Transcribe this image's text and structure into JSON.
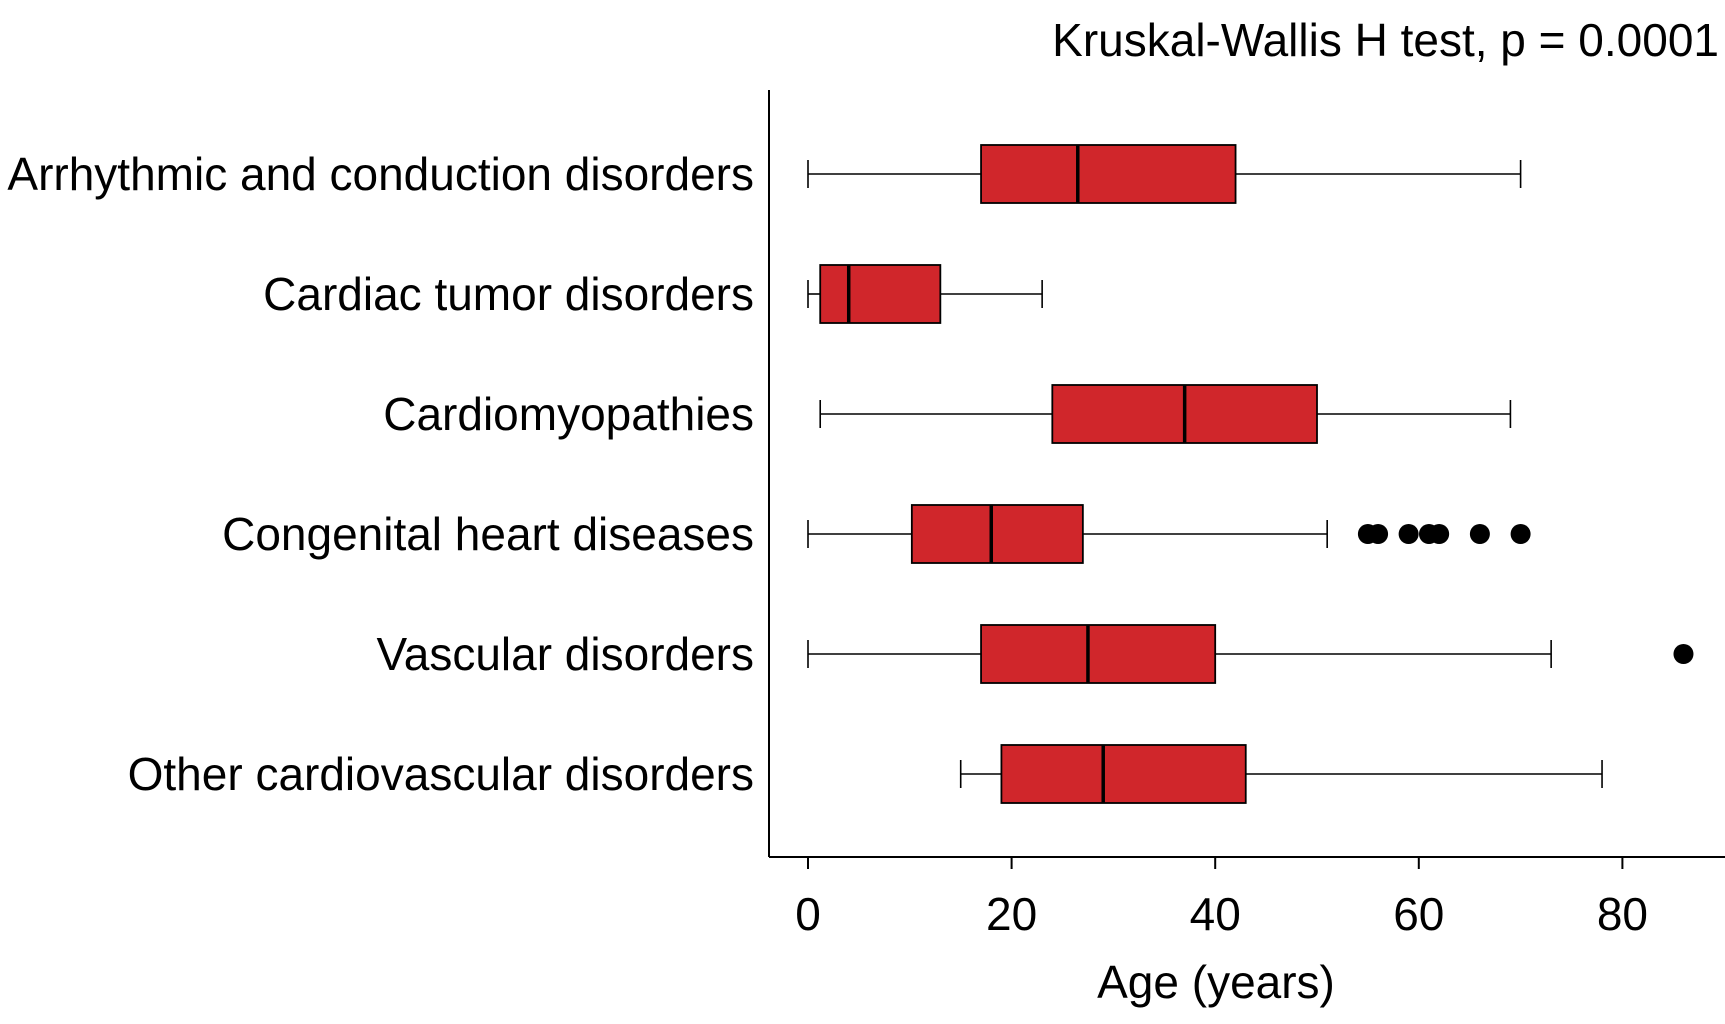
{
  "chart_data": {
    "type": "boxplot",
    "orientation": "horizontal",
    "title": "Kruskal-Wallis H test, p = 0.0001",
    "xlabel": "Age (years)",
    "ylabel": "",
    "xlim": [
      -4,
      90
    ],
    "xticks": [
      0,
      20,
      40,
      60,
      80
    ],
    "xtick_labels": [
      "0",
      "20",
      "40",
      "60",
      "80"
    ],
    "grid": false,
    "legend": "none",
    "box_color": "#d0262b",
    "box_edge_color": "#000000",
    "outlier_color": "#000000",
    "categories": [
      "Arrhythmic and conduction disorders",
      "Cardiac tumor disorders",
      "Cardiomyopathies",
      "Congenital heart diseases",
      "Vascular disorders",
      "Other cardiovascular disorders"
    ],
    "boxes": [
      {
        "category": "Arrhythmic and conduction disorders",
        "whisker_low": 0,
        "q1": 17,
        "median": 26.5,
        "q3": 42,
        "whisker_high": 70,
        "outliers": []
      },
      {
        "category": "Cardiac tumor disorders",
        "whisker_low": 0,
        "q1": 1.2,
        "median": 4,
        "q3": 13,
        "whisker_high": 23,
        "outliers": []
      },
      {
        "category": "Cardiomyopathies",
        "whisker_low": 1.2,
        "q1": 24,
        "median": 37,
        "q3": 50,
        "whisker_high": 69,
        "outliers": []
      },
      {
        "category": "Congenital heart diseases",
        "whisker_low": 0,
        "q1": 10.2,
        "median": 18,
        "q3": 27,
        "whisker_high": 51,
        "outliers": [
          55,
          56,
          59,
          61,
          62,
          66,
          70
        ]
      },
      {
        "category": "Vascular disorders",
        "whisker_low": 0,
        "q1": 17,
        "median": 27.5,
        "q3": 40,
        "whisker_high": 73,
        "outliers": [
          86
        ]
      },
      {
        "category": "Other cardiovascular disorders",
        "whisker_low": 15,
        "q1": 19,
        "median": 29,
        "q3": 43,
        "whisker_high": 78,
        "outliers": []
      }
    ]
  }
}
